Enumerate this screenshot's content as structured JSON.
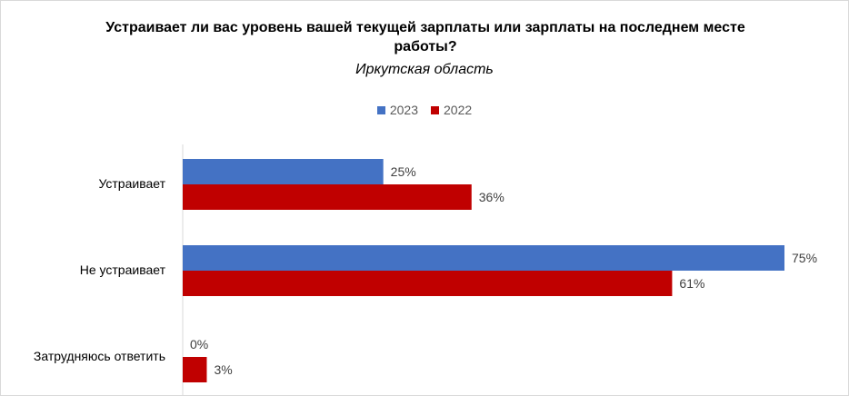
{
  "chart_data": {
    "type": "bar",
    "orientation": "horizontal",
    "title": "Устраивает ли вас уровень вашей текущей зарплаты или зарплаты на последнем месте работы?",
    "subtitle": "Иркутская область",
    "categories": [
      "Устраивает",
      "Не устраивает",
      "Затрудняюсь ответить"
    ],
    "series": [
      {
        "name": "2023",
        "values": [
          25,
          75,
          0
        ],
        "labels": [
          "25%",
          "75%",
          "0%"
        ],
        "color": "#4472C4"
      },
      {
        "name": "2022",
        "values": [
          36,
          61,
          3
        ],
        "labels": [
          "36%",
          "61%",
          "3%"
        ],
        "color": "#C00000"
      }
    ],
    "xlim": [
      0,
      75
    ],
    "legend": "top-center",
    "grid": false
  }
}
